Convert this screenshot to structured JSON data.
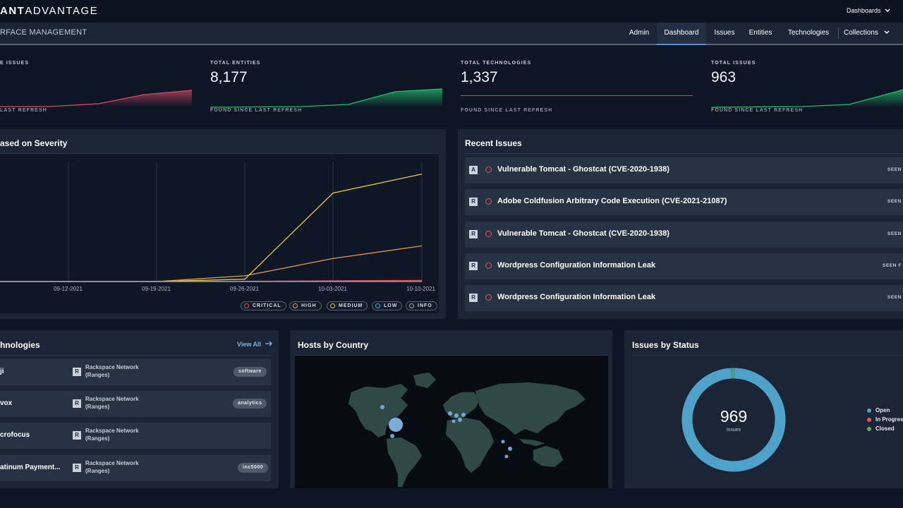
{
  "app": {
    "brand_left": "ANT",
    "brand_right": "ADVANTAGE",
    "dashboards_menu": "Dashboards"
  },
  "subnav": {
    "section_title": "RFACE MANAGEMENT",
    "items": [
      {
        "label": "Admin"
      },
      {
        "label": "Dashboard",
        "active": true
      },
      {
        "label": "Issues"
      },
      {
        "label": "Entities"
      },
      {
        "label": "Technologies"
      },
      {
        "label": "Collections"
      }
    ]
  },
  "stats": [
    {
      "label": "E ISSUES",
      "value": "",
      "footer": "LAST REFRESH",
      "color": "#d64a66"
    },
    {
      "label": "TOTAL ENTITIES",
      "value": "8,177",
      "footer": "FOUND SINCE LAST REFRESH",
      "color": "#1fbf6a"
    },
    {
      "label": "TOTAL TECHNOLOGIES",
      "value": "1,337",
      "footer": "FOUND SINCE LAST REFRESH",
      "color": "#d64a66"
    },
    {
      "label": "TOTAL ISSUES",
      "value": "963",
      "footer": "FOUND SINCE LAST REFRESH",
      "color": "#1fbf6a"
    }
  ],
  "severity_panel": {
    "title": "ased on Severity"
  },
  "chart_data": {
    "type": "line",
    "x": [
      "",
      "09-12-2021",
      "09-19-2021",
      "09-26-2021",
      "10-03-2021",
      "10-10-2021"
    ],
    "series": [
      {
        "name": "CRITICAL",
        "color": "#e0535f",
        "values": [
          0,
          0,
          0,
          2,
          6,
          10
        ]
      },
      {
        "name": "HIGH",
        "color": "#e39a4f",
        "values": [
          0,
          0,
          0,
          50,
          200,
          310
        ]
      },
      {
        "name": "MEDIUM",
        "color": "#e6c74a",
        "values": [
          0,
          0,
          0,
          20,
          770,
          935
        ]
      },
      {
        "name": "LOW",
        "color": "#5aa9d6",
        "values": [
          0,
          0,
          0,
          0,
          0,
          0
        ]
      },
      {
        "name": "INFO",
        "color": "#9aa3ae",
        "values": [
          0,
          0,
          0,
          0,
          0,
          0
        ]
      }
    ],
    "ylim": [
      0,
      1050
    ],
    "grid": true,
    "legend": "bottom-right"
  },
  "recent_issues": {
    "title": "Recent Issues",
    "items": [
      {
        "badge": "A",
        "title": "Vulnerable Tomcat - Ghostcat (CVE-2020-1938)",
        "seen": "SEEN"
      },
      {
        "badge": "R",
        "title": "Adobe Coldfusion Arbitrary Code Execution (CVE-2021-21087)",
        "seen": "SEEN"
      },
      {
        "badge": "R",
        "title": "Vulnerable Tomcat - Ghostcat (CVE-2020-1938)",
        "seen": "SEEN"
      },
      {
        "badge": "R",
        "title": "Wordpress Configuration Information Leak",
        "seen": "SEEN F"
      },
      {
        "badge": "R",
        "title": "Wordpress Configuration Information Leak",
        "seen": "SEEN"
      }
    ]
  },
  "technologies": {
    "title": "hnologies",
    "view_all": "View All",
    "items": [
      {
        "name": "ji",
        "badge": "R",
        "source": "Rackspace Network (Ranges)",
        "tag": "software"
      },
      {
        "name": "vox",
        "badge": "R",
        "source": "Rackspace Network (Ranges)",
        "tag": "analytics"
      },
      {
        "name": "crofocus",
        "badge": "R",
        "source": "Rackspace Network (Ranges)",
        "tag": ""
      },
      {
        "name": "atinum Payment...",
        "badge": "R",
        "source": "Rackspace Network (Ranges)",
        "tag": "inc5000"
      }
    ]
  },
  "hosts_by_country": {
    "title": "Hosts by Country"
  },
  "issues_by_status": {
    "title": "Issues by Status",
    "total": "969",
    "total_label": "Issues",
    "legend": [
      {
        "label": "Open",
        "color": "#4ea1c9",
        "value": 962
      },
      {
        "label": "In Progres",
        "color": "#e0535f",
        "value": 0
      },
      {
        "label": "Closed",
        "color": "#56b06e",
        "value": 7
      }
    ]
  }
}
